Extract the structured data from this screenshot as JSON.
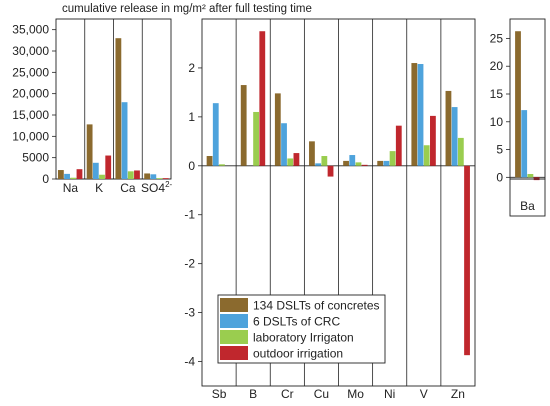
{
  "title": "cumulative release in mg/m² after full testing time",
  "colors": {
    "134 DSLTs of concretes": "#8b6a2e",
    "6 DSLTs of CRC": "#4ea3dc",
    "laboratory Irrigaton": "#9acd4f",
    "outdoor irrigation": "#c0272d"
  },
  "chart_data": [
    {
      "type": "bar",
      "categories": [
        "Na",
        "K",
        "Ca",
        "SO4"
      ],
      "category_superscripts": [
        "",
        "",
        "",
        "2-"
      ],
      "series": [
        {
          "name": "134 DSLTs of concretes",
          "values": [
            2100,
            12800,
            33000,
            1300
          ]
        },
        {
          "name": "6 DSLTs of CRC",
          "values": [
            1200,
            3800,
            18000,
            1100
          ]
        },
        {
          "name": "laboratory Irrigaton",
          "values": [
            300,
            1000,
            1800,
            200
          ]
        },
        {
          "name": "outdoor irrigation",
          "values": [
            2300,
            5500,
            2000,
            200
          ]
        }
      ],
      "ylim": [
        0,
        37500
      ],
      "yticks": [
        0,
        5000,
        10000,
        15000,
        20000,
        25000,
        30000,
        35000
      ],
      "ytick_labels": [
        "0",
        "5000",
        "10,000",
        "15,000",
        "20,000",
        "25,000",
        "30,000",
        "35,000"
      ],
      "xlabel": "",
      "ylabel": ""
    },
    {
      "type": "bar",
      "categories": [
        "Sb",
        "B",
        "Cr",
        "Cu",
        "Mo",
        "Ni",
        "V",
        "Zn"
      ],
      "category_superscripts": [
        "",
        "",
        "",
        "",
        "",
        "",
        "",
        ""
      ],
      "series": [
        {
          "name": "134 DSLTs of concretes",
          "values": [
            0.2,
            1.65,
            1.48,
            0.5,
            0.1,
            0.1,
            2.1,
            1.53
          ]
        },
        {
          "name": "6 DSLTs of CRC",
          "values": [
            1.28,
            0.0,
            0.87,
            0.05,
            0.22,
            0.1,
            2.08,
            1.2
          ]
        },
        {
          "name": "laboratory Irrigaton",
          "values": [
            0.03,
            1.1,
            0.15,
            0.2,
            0.07,
            0.3,
            0.42,
            0.57
          ]
        },
        {
          "name": "outdoor irrigation",
          "values": [
            0.0,
            2.75,
            0.26,
            -0.22,
            0.02,
            0.82,
            1.02,
            -3.87
          ]
        }
      ],
      "ylim": [
        -4.5,
        3.0
      ],
      "yticks": [
        -4,
        -3,
        -2,
        -1,
        0,
        1,
        2
      ],
      "ytick_labels": [
        "-4",
        "-3",
        "-2",
        "-1",
        "0",
        "1",
        "2"
      ],
      "xlabel": "",
      "ylabel": "",
      "legend": {
        "position": "bottom-left",
        "entries": [
          "134 DSLTs of concretes",
          "6 DSLTs of CRC",
          "laboratory Irrigaton",
          "outdoor irrigation"
        ]
      }
    },
    {
      "type": "bar",
      "categories": [
        "Ba"
      ],
      "category_superscripts": [
        ""
      ],
      "series": [
        {
          "name": "134 DSLTs of concretes",
          "values": [
            26.3
          ]
        },
        {
          "name": "6 DSLTs of CRC",
          "values": [
            12.1
          ]
        },
        {
          "name": "laboratory Irrigaton",
          "values": [
            0.6
          ]
        },
        {
          "name": "outdoor irrigation",
          "values": [
            -0.5
          ]
        }
      ],
      "ylim": [
        -0.3,
        28.5
      ],
      "yticks": [
        0,
        5,
        10,
        15,
        20,
        25
      ],
      "ytick_labels": [
        "0",
        "5",
        "10",
        "15",
        "20",
        "25"
      ],
      "xlabel": "",
      "ylabel": ""
    }
  ]
}
